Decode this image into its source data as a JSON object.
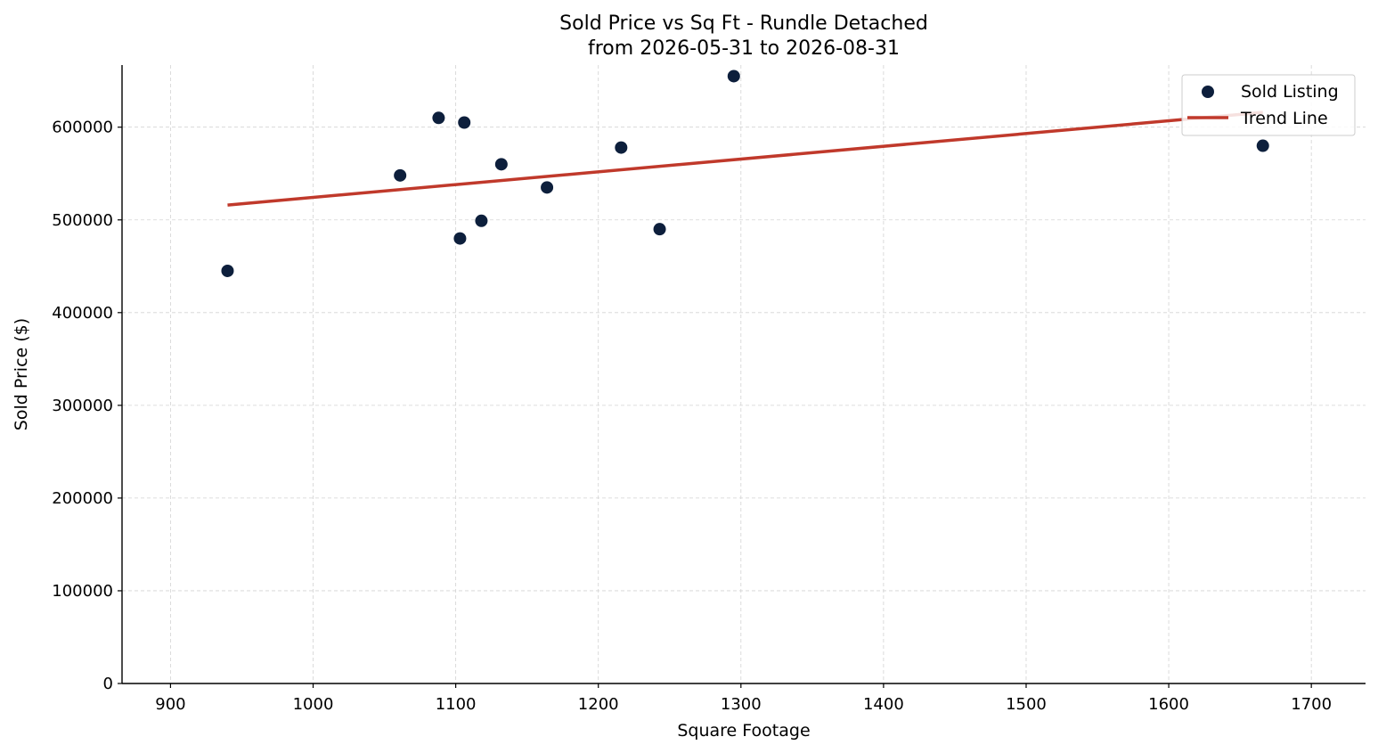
{
  "chart_data": {
    "type": "scatter",
    "title_line1": "Sold Price vs Sq Ft - Rundle Detached",
    "title_line2": "from 2026-05-31 to 2026-08-31",
    "xlabel": "Square Footage",
    "ylabel": "Sold Price ($)",
    "xlim": [
      866,
      1738
    ],
    "ylim": [
      0,
      667000
    ],
    "x_ticks": [
      900,
      1000,
      1100,
      1200,
      1300,
      1400,
      1500,
      1600,
      1700
    ],
    "x_tick_labels": [
      "900",
      "1000",
      "1100",
      "1200",
      "1300",
      "1400",
      "1500",
      "1600",
      "1700"
    ],
    "y_ticks": [
      0,
      100000,
      200000,
      300000,
      400000,
      500000,
      600000
    ],
    "y_tick_labels": [
      "0",
      "100000",
      "200000",
      "300000",
      "400000",
      "500000",
      "600000"
    ],
    "grid": true,
    "legend_position": "top-right",
    "series": [
      {
        "name": "Sold Listing",
        "kind": "scatter",
        "color": "#0d1f3c",
        "points": [
          {
            "x": 940,
            "y": 445000
          },
          {
            "x": 1061,
            "y": 548000
          },
          {
            "x": 1088,
            "y": 610000
          },
          {
            "x": 1103,
            "y": 480000
          },
          {
            "x": 1106,
            "y": 605000
          },
          {
            "x": 1118,
            "y": 499000
          },
          {
            "x": 1132,
            "y": 560000
          },
          {
            "x": 1164,
            "y": 535000
          },
          {
            "x": 1216,
            "y": 578000
          },
          {
            "x": 1243,
            "y": 490000
          },
          {
            "x": 1295,
            "y": 655000
          },
          {
            "x": 1666,
            "y": 580000
          }
        ]
      },
      {
        "name": "Trend Line",
        "kind": "line",
        "color": "#c0392b",
        "points": [
          {
            "x": 940,
            "y": 516000
          },
          {
            "x": 1666,
            "y": 616000
          }
        ]
      }
    ]
  }
}
